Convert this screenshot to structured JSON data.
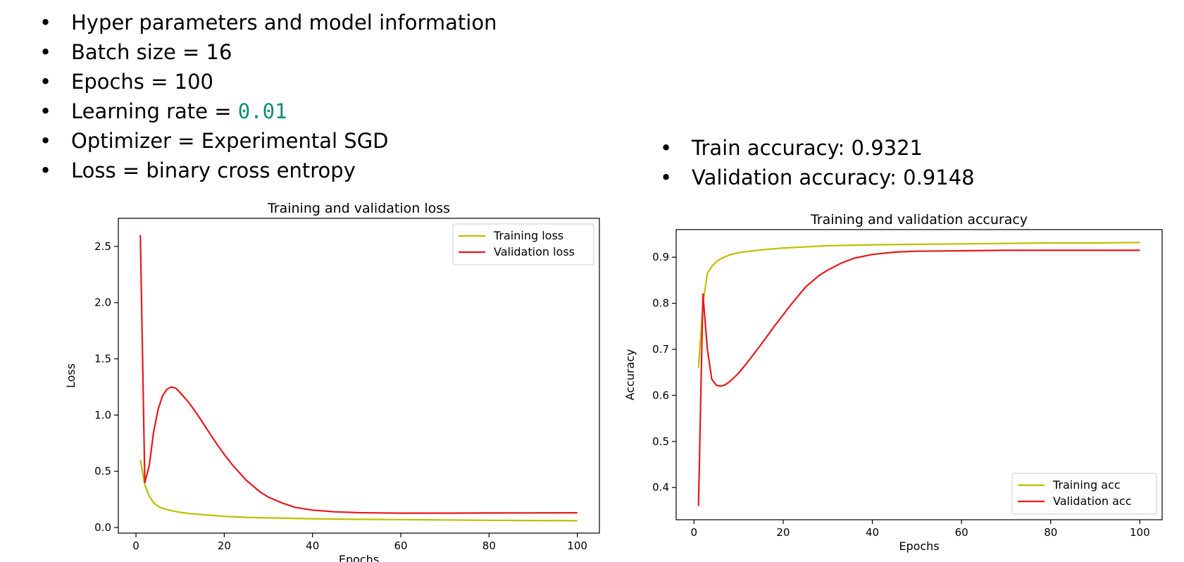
{
  "slide": {
    "left_bullets": [
      "Hyper parameters and model information",
      "Batch size = 16",
      "Epochs = 100",
      "Optimizer = Experimental SGD",
      "Loss = binary cross entropy"
    ],
    "learning_rate_label": "Learning rate = ",
    "learning_rate_value": "0.01",
    "learning_rate_color": "#0e8f6f",
    "right_bullets": [
      "Train accuracy: 0.9321",
      "Validation accuracy: 0.9148"
    ]
  },
  "chart_data": [
    {
      "type": "line",
      "title": "Training and validation loss",
      "xlabel": "Epochs",
      "ylabel": "Loss",
      "xlim": [
        -4,
        105
      ],
      "ylim": [
        -0.05,
        2.75
      ],
      "xticks": [
        0,
        20,
        40,
        60,
        80,
        100
      ],
      "yticks": [
        0.0,
        0.5,
        1.0,
        1.5,
        2.0,
        2.5
      ],
      "grid": false,
      "legend": "upper right",
      "series": [
        {
          "name": "Training loss",
          "color": "#bfbf00",
          "x": [
            1,
            2,
            3,
            4,
            5,
            6,
            8,
            10,
            12,
            15,
            20,
            25,
            30,
            40,
            50,
            60,
            70,
            80,
            90,
            100
          ],
          "y": [
            0.6,
            0.38,
            0.28,
            0.22,
            0.19,
            0.17,
            0.15,
            0.135,
            0.125,
            0.115,
            0.1,
            0.09,
            0.085,
            0.078,
            0.073,
            0.07,
            0.067,
            0.064,
            0.062,
            0.06
          ]
        },
        {
          "name": "Validation loss",
          "color": "#e41a1c",
          "x": [
            1,
            2,
            3,
            4,
            5,
            6,
            7,
            8,
            9,
            10,
            12,
            14,
            16,
            18,
            20,
            22,
            25,
            28,
            30,
            33,
            36,
            40,
            45,
            50,
            55,
            60,
            70,
            80,
            90,
            100
          ],
          "y": [
            2.6,
            0.4,
            0.55,
            0.85,
            1.05,
            1.17,
            1.23,
            1.25,
            1.24,
            1.2,
            1.11,
            1.0,
            0.88,
            0.76,
            0.65,
            0.55,
            0.42,
            0.32,
            0.27,
            0.22,
            0.18,
            0.155,
            0.14,
            0.132,
            0.13,
            0.128,
            0.128,
            0.129,
            0.13,
            0.131
          ]
        }
      ]
    },
    {
      "type": "line",
      "title": "Training and validation accuracy",
      "xlabel": "Epochs",
      "ylabel": "Accuracy",
      "xlim": [
        -4,
        105
      ],
      "ylim": [
        0.33,
        0.96
      ],
      "xticks": [
        0,
        20,
        40,
        60,
        80,
        100
      ],
      "yticks": [
        0.4,
        0.5,
        0.6,
        0.7,
        0.8,
        0.9
      ],
      "grid": false,
      "legend": "lower right",
      "series": [
        {
          "name": "Training acc",
          "color": "#bfbf00",
          "x": [
            1,
            2,
            3,
            4,
            5,
            6,
            8,
            10,
            15,
            20,
            30,
            40,
            50,
            60,
            70,
            80,
            90,
            100
          ],
          "y": [
            0.66,
            0.8,
            0.865,
            0.88,
            0.89,
            0.897,
            0.905,
            0.91,
            0.916,
            0.92,
            0.925,
            0.927,
            0.928,
            0.929,
            0.93,
            0.931,
            0.931,
            0.932
          ]
        },
        {
          "name": "Validation acc",
          "color": "#e41a1c",
          "x": [
            1,
            2,
            3,
            4,
            5,
            6,
            7,
            8,
            10,
            12,
            15,
            18,
            20,
            22,
            25,
            28,
            30,
            33,
            36,
            40,
            45,
            50,
            60,
            70,
            80,
            90,
            100
          ],
          "y": [
            0.36,
            0.82,
            0.7,
            0.635,
            0.622,
            0.62,
            0.623,
            0.63,
            0.648,
            0.672,
            0.71,
            0.75,
            0.775,
            0.8,
            0.835,
            0.86,
            0.872,
            0.887,
            0.898,
            0.906,
            0.911,
            0.913,
            0.914,
            0.915,
            0.915,
            0.915,
            0.915
          ]
        }
      ]
    }
  ]
}
